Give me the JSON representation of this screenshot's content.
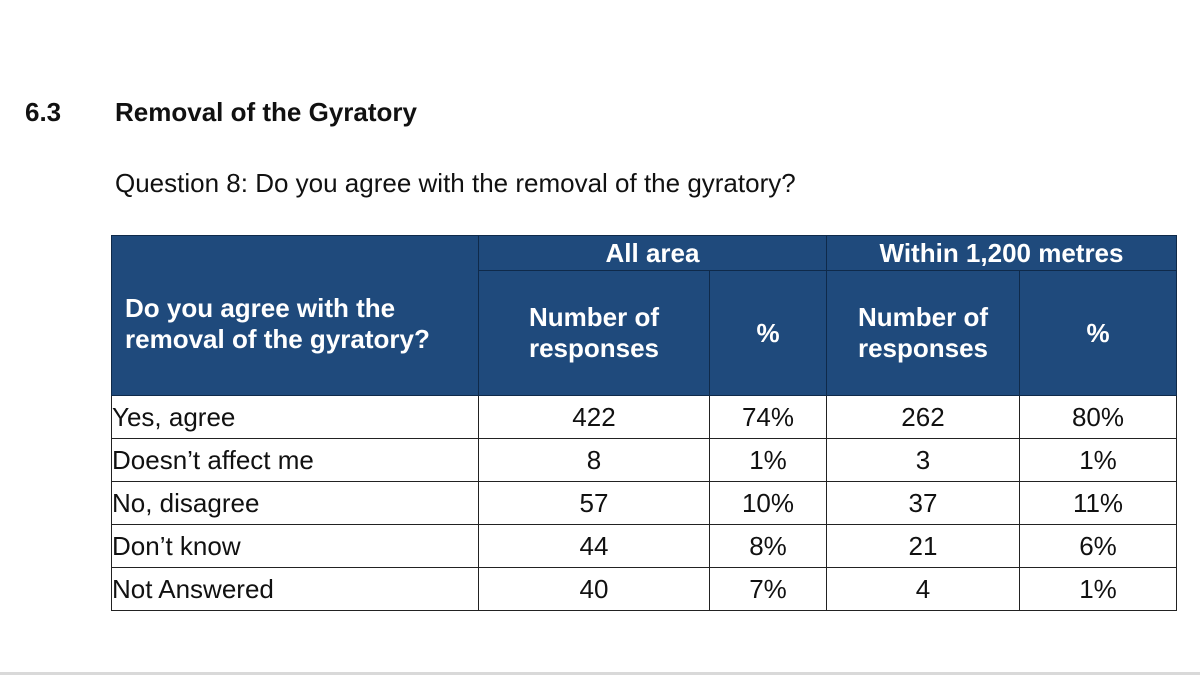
{
  "section": {
    "number": "6.3",
    "title": "Removal of the Gyratory"
  },
  "question": "Question 8: Do you agree with the removal of the gyratory?",
  "table": {
    "row_header": "Do you agree with the removal of the gyratory?",
    "groups": [
      "All area",
      "Within 1,200 metres"
    ],
    "columns": [
      "Number of responses",
      "%",
      "Number of responses",
      "%"
    ],
    "rows": [
      {
        "label": "Yes, agree",
        "values": [
          "422",
          "74%",
          "262",
          "80%"
        ]
      },
      {
        "label": "Doesn’t affect me",
        "values": [
          "8",
          "1%",
          "3",
          "1%"
        ]
      },
      {
        "label": "No, disagree",
        "values": [
          "57",
          "10%",
          "37",
          "11%"
        ]
      },
      {
        "label": "Don’t know",
        "values": [
          "44",
          "8%",
          "21",
          "6%"
        ]
      },
      {
        "label": "Not Answered",
        "values": [
          "40",
          "7%",
          "4",
          "1%"
        ]
      }
    ]
  },
  "colors": {
    "header_background": "#1f4a7c",
    "header_text": "#ffffff"
  }
}
